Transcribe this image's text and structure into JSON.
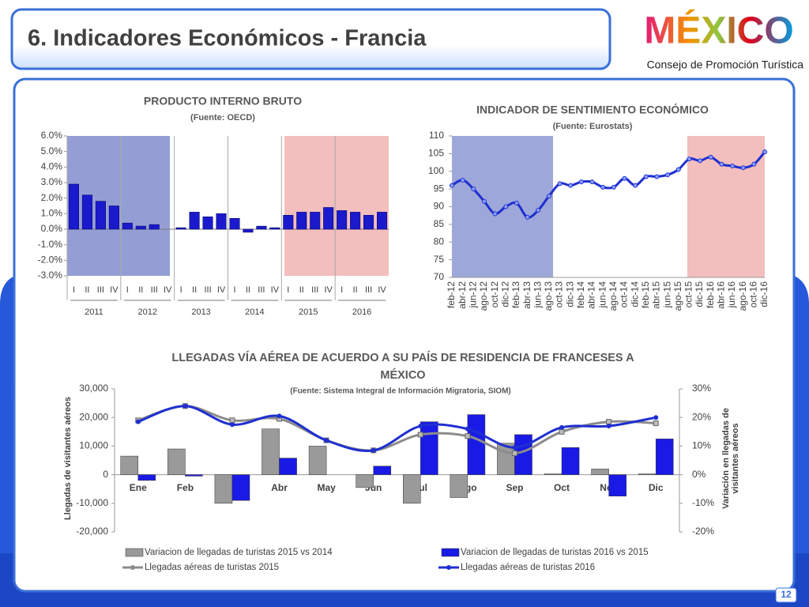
{
  "header": {
    "title": "6. Indicadores Económicos - Francia",
    "logo": "MÉXICO",
    "subtitle": "Consejo de Promoción Turística",
    "page": "12"
  },
  "chart_data": [
    {
      "type": "bar",
      "title": "PRODUCTO INTERNO BRUTO",
      "subtitle": "(Fuente: OECD)",
      "categories": [
        "I",
        "II",
        "III",
        "IV",
        "I",
        "II",
        "III",
        "IV",
        "I",
        "II",
        "III",
        "IV",
        "I",
        "II",
        "III",
        "IV",
        "I",
        "II",
        "III",
        "IV",
        "I",
        "II",
        "III",
        "IV"
      ],
      "groups": [
        "2011",
        "2012",
        "2013",
        "2014",
        "2015",
        "2016"
      ],
      "values": [
        2.9,
        2.2,
        1.8,
        1.5,
        0.4,
        0.2,
        0.3,
        0.0,
        0.1,
        1.1,
        0.8,
        1.0,
        0.7,
        -0.2,
        0.2,
        0.1,
        0.9,
        1.1,
        1.1,
        1.4,
        1.2,
        1.1,
        0.9,
        1.1
      ],
      "color": "#1a1acc",
      "ylim": [
        -3,
        6
      ],
      "yticks": [
        {
          "value": -3,
          "label": "-3.0%"
        },
        {
          "value": -2,
          "label": "-2.0%"
        },
        {
          "value": -1,
          "label": "-1.0%"
        },
        {
          "value": 0,
          "label": "0.0%"
        },
        {
          "value": 1,
          "label": "1.0%"
        },
        {
          "value": 2,
          "label": "2.0%"
        },
        {
          "value": 3,
          "label": "3.0%"
        },
        {
          "value": 4,
          "label": "4.0%"
        },
        {
          "value": 5,
          "label": "5.0%"
        },
        {
          "value": 6,
          "label": "6.0%"
        }
      ],
      "grid": false
    },
    {
      "type": "line",
      "title": "INDICADOR DE SENTIMIENTO ECONÓMICO",
      "subtitle": "(Fuente: Eurostats)",
      "categories": [
        "feb-12",
        "abr-12",
        "jun-12",
        "ago-12",
        "oct-12",
        "dic-12",
        "feb-13",
        "abr-13",
        "jun-13",
        "ago-13",
        "oct-13",
        "dic-13",
        "feb-14",
        "abr-14",
        "jun-14",
        "ago-14",
        "oct-14",
        "dic-14",
        "feb-15",
        "abr-15",
        "jun-15",
        "ago-15",
        "oct-15",
        "dic-15",
        "feb-16",
        "abr-16",
        "jun-16",
        "ago-16",
        "oct-16",
        "dic-16"
      ],
      "values": [
        96,
        97.5,
        95,
        91.5,
        88,
        90,
        91,
        87,
        89,
        93,
        96.5,
        96,
        97,
        97,
        95.5,
        95.5,
        98,
        96,
        98.5,
        98.5,
        99,
        100.5,
        103.5,
        103,
        104,
        102,
        101.5,
        101,
        102,
        105.5
      ],
      "color": "#1f2fd0",
      "ylim": [
        70,
        110
      ],
      "yticks": [
        70,
        75,
        80,
        85,
        90,
        95,
        100,
        105,
        110
      ],
      "grid": false
    },
    {
      "type": "combo",
      "title": "LLEGADAS VÍA AÉREA DE ACUERDO A SU PAÍS DE RESIDENCIA DE FRANCESES A MÉXICO",
      "subtitle": "(Fuente: Sistema Integral de Información Migratoria, SIOM)",
      "ylabel": "Llegadas de visitantes aéreos",
      "y2label": "Variación en llegadas de visitantes aéreos",
      "categories": [
        "Ene",
        "Feb",
        "Mar",
        "Abr",
        "May",
        "Jun",
        "Jul",
        "Ago",
        "Sep",
        "Oct",
        "Nov",
        "Dic"
      ],
      "series": [
        {
          "name": "Variacion de llegadas de turistas  2015 vs 2014",
          "kind": "bar",
          "color": "#9a9a9a",
          "values": [
            6500,
            9000,
            -10000,
            16000,
            10000,
            -4500,
            -10000,
            -8000,
            11000,
            300,
            2000,
            300
          ]
        },
        {
          "name": "Variacion de llegadas de turistas  2016 vs 2015",
          "kind": "bar",
          "color": "#1a1ae6",
          "values": [
            -2000,
            -500,
            -9000,
            5800,
            0,
            3000,
            18500,
            21000,
            14000,
            9500,
            -7500,
            12500
          ]
        },
        {
          "name": "Llegadas aéreas de turistas 2015",
          "kind": "line",
          "axis": "y2",
          "color": "#8c8c8c",
          "values": [
            19,
            24,
            19,
            19.5,
            12,
            8.5,
            14,
            13.5,
            7.5,
            15,
            18.5,
            18
          ]
        },
        {
          "name": "Llegadas aéreas de turistas 2016",
          "kind": "line",
          "axis": "y2",
          "color": "#1f2fd0",
          "values": [
            18.5,
            24,
            17.5,
            20.5,
            12,
            8.5,
            17,
            16,
            9.5,
            16.5,
            17,
            20
          ]
        }
      ],
      "ylim": [
        -20000,
        30000
      ],
      "yticks": [
        {
          "value": -20000,
          "label": "-20,000"
        },
        {
          "value": -10000,
          "label": "-10,000"
        },
        0,
        {
          "value": 10000,
          "label": "10,000"
        },
        {
          "value": 20000,
          "label": "20,000"
        },
        {
          "value": 30000,
          "label": "30,000"
        }
      ],
      "y2lim": [
        -20,
        30
      ],
      "y2ticks": [
        {
          "value": -20,
          "label": "-20%"
        },
        {
          "value": -10,
          "label": "-10%"
        },
        {
          "value": 0,
          "label": "0%"
        },
        {
          "value": 10,
          "label": "10%"
        },
        {
          "value": 20,
          "label": "20%"
        },
        {
          "value": 30,
          "label": "30%"
        }
      ],
      "grid": false
    }
  ]
}
